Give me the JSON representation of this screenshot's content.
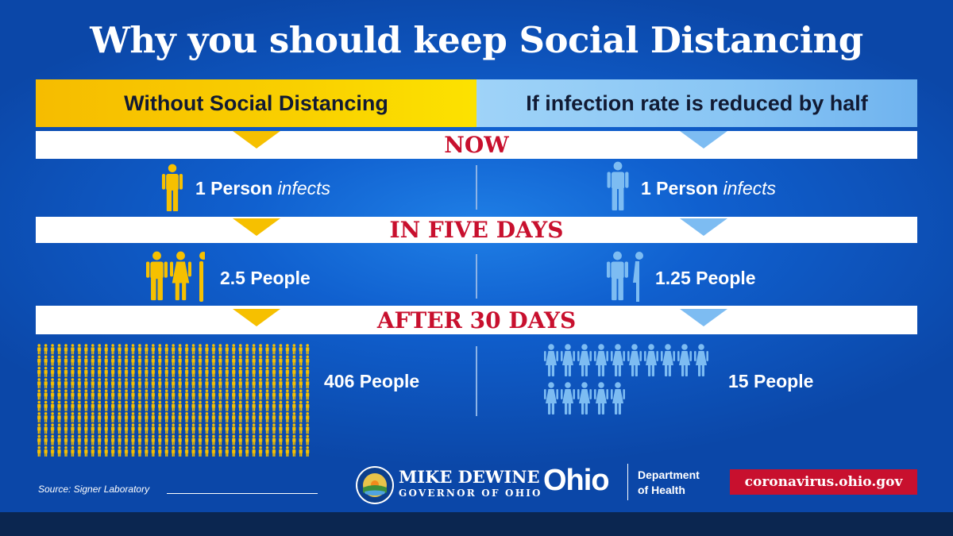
{
  "title": "Why you should keep Social Distancing",
  "headers": {
    "left": "Without Social Distancing",
    "right": "If infection rate is reduced by half"
  },
  "bands": {
    "now": "NOW",
    "five_days": "IN FIVE DAYS",
    "thirty_days": "AFTER 30 DAYS"
  },
  "rows": {
    "now_left": {
      "strong": "1 Person",
      "italic": "infects"
    },
    "now_right": {
      "strong": "1 Person",
      "italic": "infects"
    },
    "five_left": "2.5 People",
    "five_right": "1.25 People",
    "thirty_left": "406 People",
    "thirty_right": "15 People"
  },
  "footer": {
    "source": "Source: Signer Laboratory",
    "governor_name": "MIKE DEWINE",
    "governor_title": "GOVERNOR OF OHIO",
    "ohio_logo": "Ohio",
    "dept_line1": "Department",
    "dept_line2": "of Health",
    "url": "coronavirus.ohio.gov"
  },
  "colors": {
    "yellow": "#f6c000",
    "light_blue": "#7dbcf2",
    "red": "#c8102e",
    "background": "#1060cf"
  },
  "icons": {
    "person": "person-icon",
    "seal": "ohio-seal-icon"
  }
}
